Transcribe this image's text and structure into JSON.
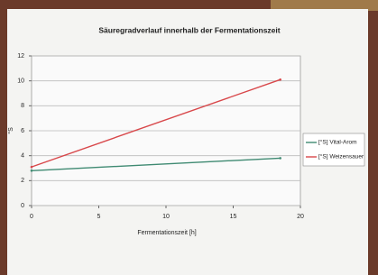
{
  "chart_data": {
    "type": "line",
    "title": "Säuregradverlauf innerhalb der Fermentationszeit",
    "x_label": "Fermentationszeit [h]",
    "y_label": "°S",
    "x": [
      0,
      18.5
    ],
    "series": [
      {
        "name": "[°S] Vital-Arom",
        "color": "#3f8a72",
        "values": [
          2.8,
          3.8
        ]
      },
      {
        "name": "[°S] Weizensauer",
        "color": "#d8474a",
        "values": [
          3.1,
          10.1
        ]
      }
    ],
    "xlim": [
      0,
      20
    ],
    "xticks": [
      0,
      5,
      10,
      15,
      20
    ],
    "ylim": [
      0,
      12
    ],
    "yticks": [
      0,
      2,
      4,
      6,
      8,
      10,
      12
    ],
    "grid": true,
    "legend": "right"
  }
}
